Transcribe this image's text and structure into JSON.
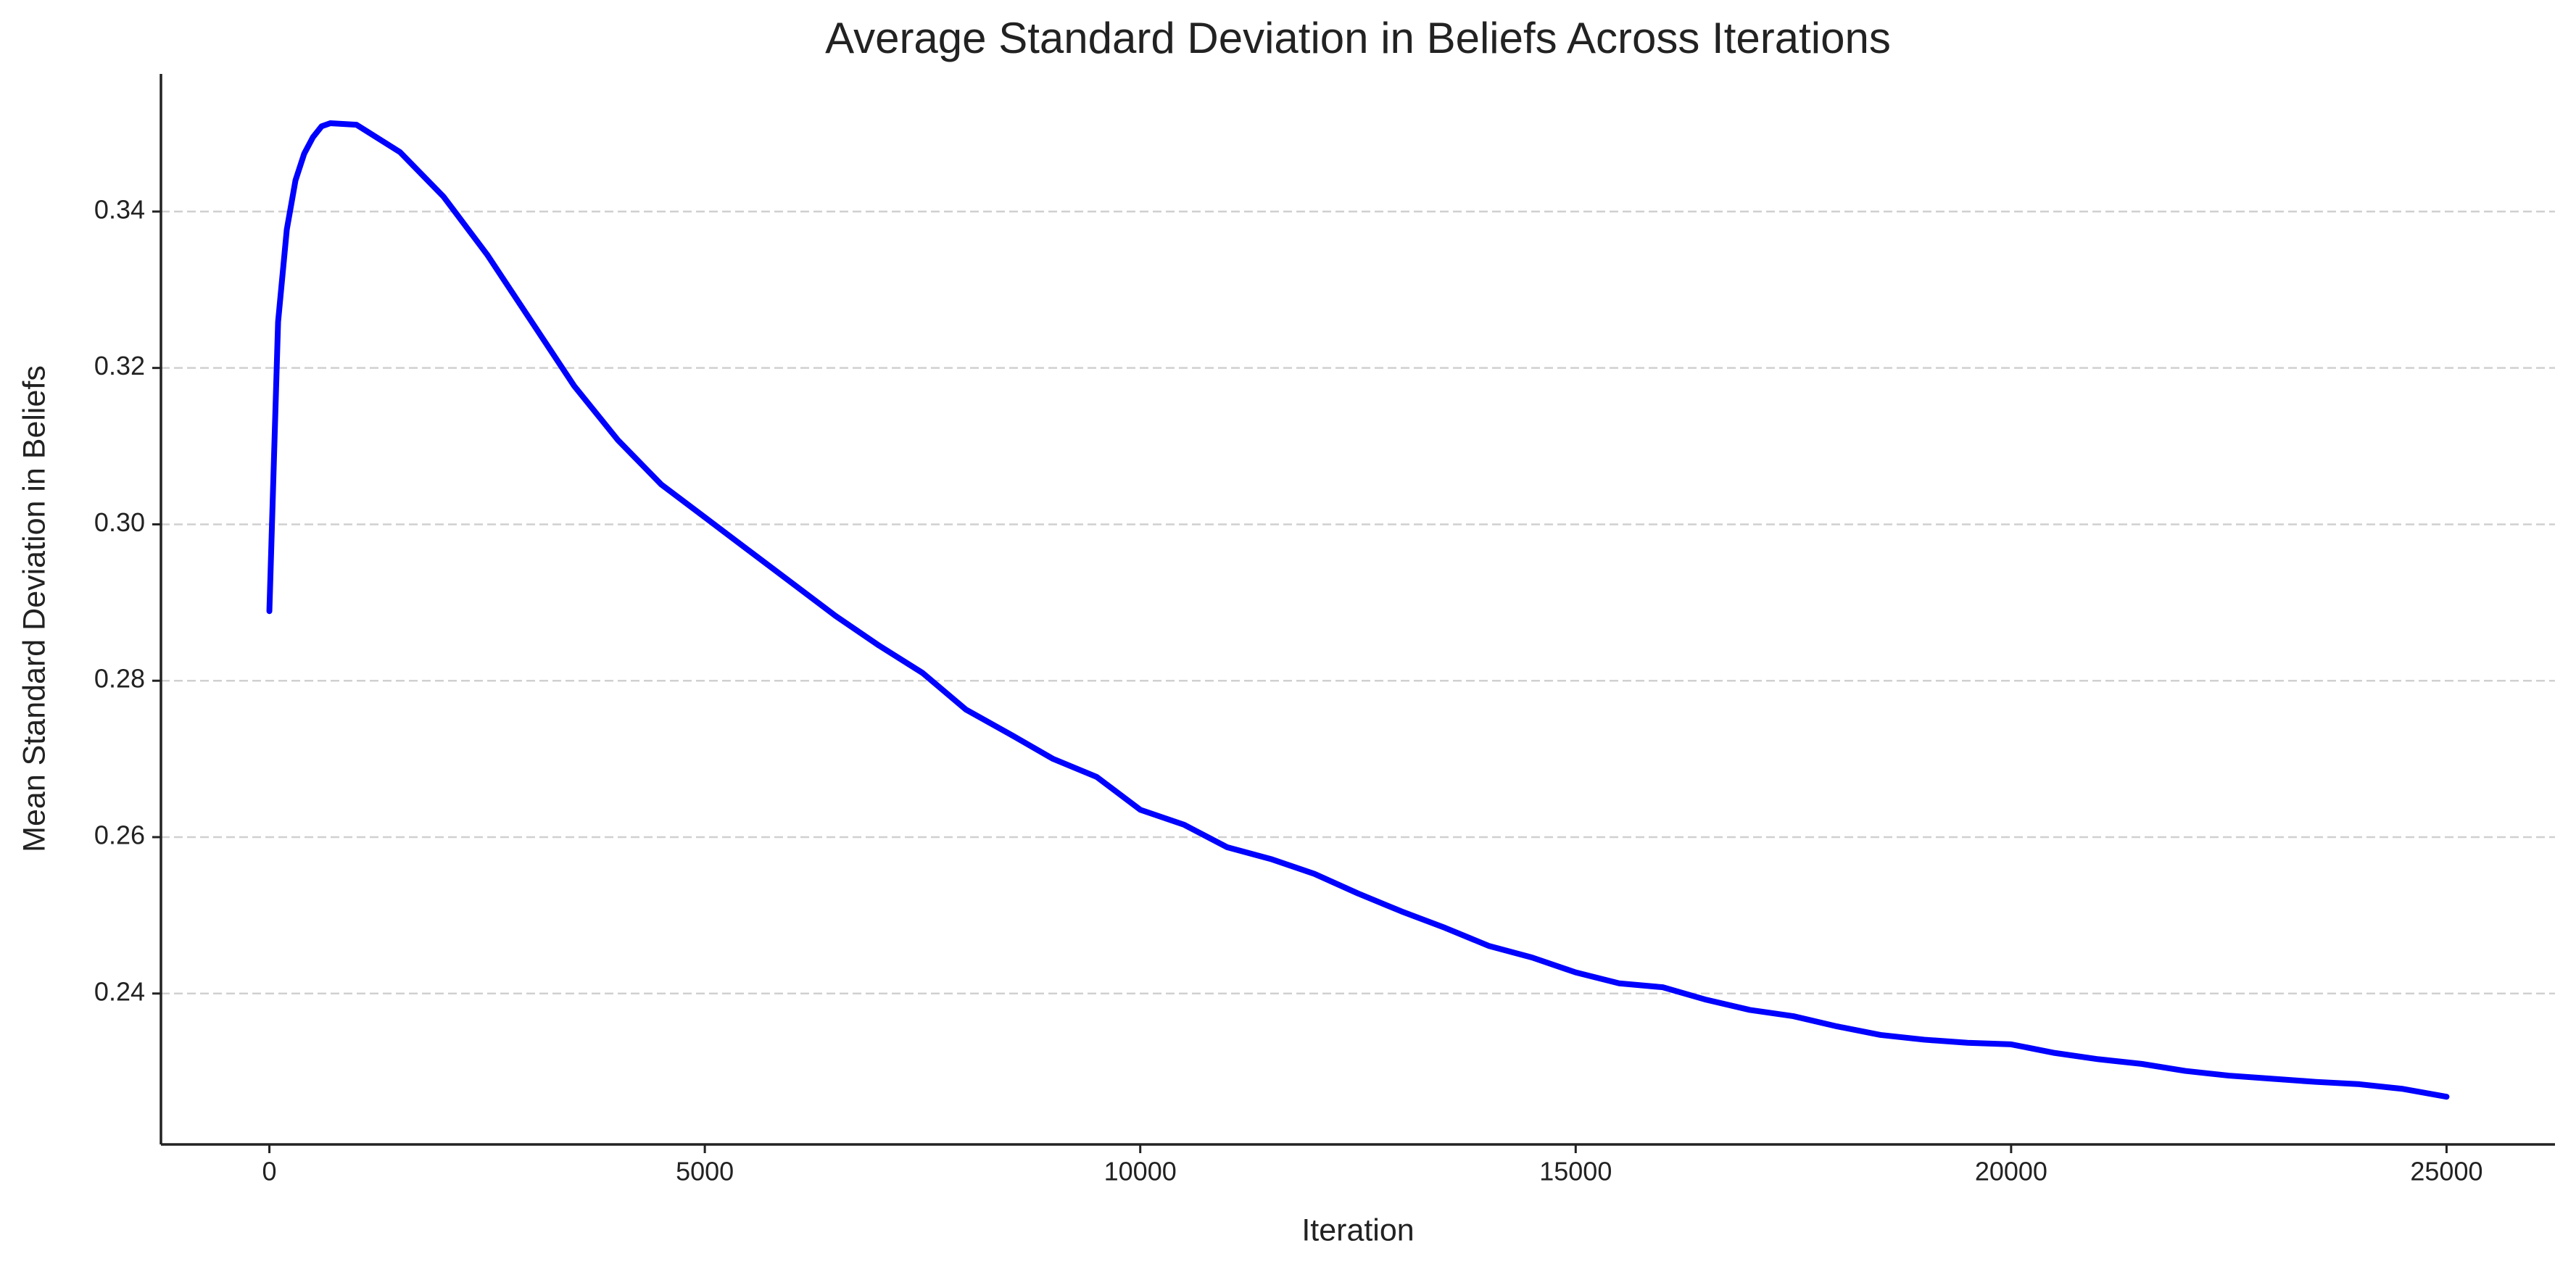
{
  "chart_data": {
    "type": "line",
    "title": "Average Standard Deviation in Beliefs Across Iterations",
    "xlabel": "Iteration",
    "ylabel": "Mean Standard Deviation in Beliefs",
    "x": [
      0,
      100,
      200,
      300,
      400,
      500,
      600,
      700,
      1000,
      1500,
      2000,
      2500,
      3000,
      3500,
      4000,
      4500,
      5000,
      5500,
      6000,
      6500,
      7000,
      7500,
      8000,
      8500,
      9000,
      9500,
      10000,
      10500,
      11000,
      11500,
      12000,
      12500,
      13000,
      13500,
      14000,
      14500,
      15000,
      15500,
      16000,
      16500,
      17000,
      17500,
      18000,
      18500,
      19000,
      19500,
      20000,
      20500,
      21000,
      21500,
      22000,
      22500,
      23000,
      23500,
      24000,
      24500,
      25000
    ],
    "values": [
      0.2889,
      0.3259,
      0.3377,
      0.344,
      0.3474,
      0.3495,
      0.3509,
      0.3513,
      0.3511,
      0.3476,
      0.3419,
      0.3345,
      0.3261,
      0.3177,
      0.3108,
      0.3051,
      0.3009,
      0.2967,
      0.2925,
      0.2883,
      0.2845,
      0.281,
      0.2763,
      0.2732,
      0.27,
      0.2677,
      0.2635,
      0.2616,
      0.2587,
      0.2572,
      0.2553,
      0.2528,
      0.2505,
      0.2484,
      0.2461,
      0.2446,
      0.2427,
      0.2413,
      0.2408,
      0.2392,
      0.2379,
      0.2371,
      0.2358,
      0.2347,
      0.2341,
      0.2337,
      0.2335,
      0.2324,
      0.2316,
      0.231,
      0.2301,
      0.2295,
      0.2291,
      0.2287,
      0.2284,
      0.2278,
      0.2268
    ],
    "color": "#0000ff",
    "xlim": [
      -1245,
      26245
    ],
    "ylim": [
      0.2207,
      0.3576
    ],
    "xticks": [
      0,
      5000,
      10000,
      15000,
      20000,
      25000
    ],
    "yticks": [
      0.24,
      0.26,
      0.28,
      {
        "value": 0.3,
        "label": "0.30"
      },
      0.32,
      0.34
    ],
    "grid": true
  }
}
